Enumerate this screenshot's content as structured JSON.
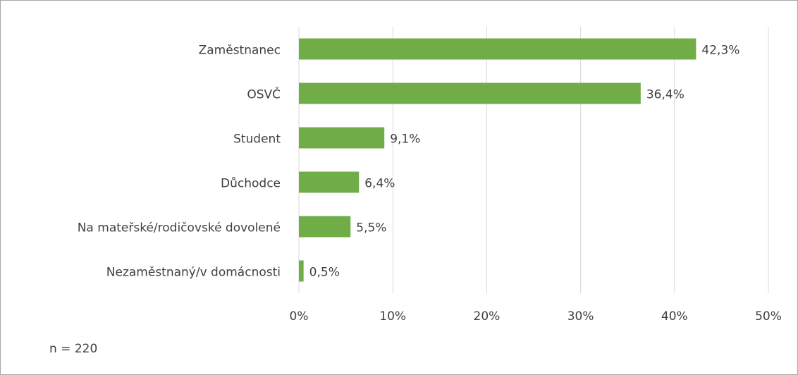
{
  "chart_data": {
    "type": "bar",
    "orientation": "horizontal",
    "categories": [
      "Zaměstnanec",
      "OSVČ",
      "Student",
      "Důchodce",
      "Na mateřské/rodičovské dovolené",
      "Nezaměstnaný/v domácnosti"
    ],
    "values": [
      42.3,
      36.4,
      9.1,
      6.4,
      5.5,
      0.5
    ],
    "value_labels": [
      "42,3%",
      "36,4%",
      "9,1%",
      "6,4%",
      "5,5%",
      "0,5%"
    ],
    "color": "#70ad47",
    "xlim": [
      0,
      50
    ],
    "xticks": [
      {
        "value": 0,
        "label": "0%"
      },
      {
        "value": 10,
        "label": "10%"
      },
      {
        "value": 20,
        "label": "20%"
      },
      {
        "value": 30,
        "label": "30%"
      },
      {
        "value": 40,
        "label": "40%"
      },
      {
        "value": 50,
        "label": "50%"
      }
    ],
    "grid": true,
    "annotation": "n = 220"
  }
}
